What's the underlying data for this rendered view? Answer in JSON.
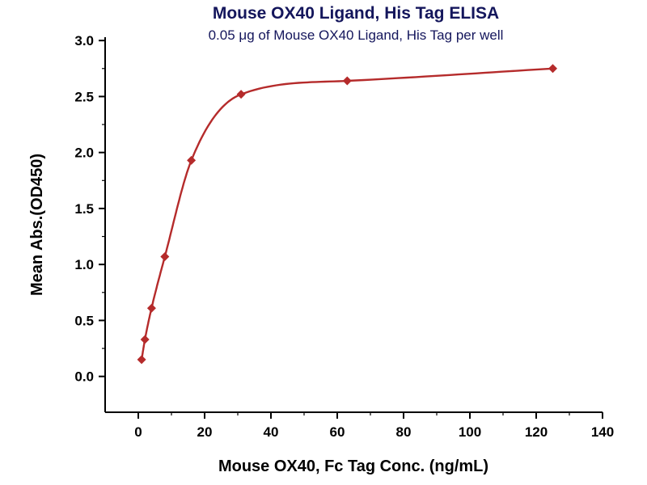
{
  "chart_data": {
    "type": "scatter",
    "title": "Mouse OX40 Ligand, His Tag ELISA",
    "subtitle": "0.05 μg of Mouse OX40 Ligand, His Tag per well",
    "xlabel": "Mouse OX40, Fc Tag Conc. (ng/mL)",
    "ylabel": "Mean Abs.(OD450)",
    "xlim": [
      -10,
      140
    ],
    "ylim": [
      -0.32,
      3.03
    ],
    "xticks": [
      0,
      20,
      40,
      60,
      80,
      100,
      120,
      140
    ],
    "yticks": [
      0,
      0.5,
      1,
      1.5,
      2,
      2.5,
      3
    ],
    "ytick_labels": [
      "0.0",
      "0.5",
      "1.0",
      "1.5",
      "2.0",
      "2.5",
      "3.0"
    ],
    "grid": false,
    "legend": "none",
    "curve": "smooth fit through points",
    "series": [
      {
        "name": "Mouse OX40, Fc Tag",
        "marker": "diamond",
        "color": "#b52b2b",
        "x": [
          1,
          2,
          4,
          8,
          16,
          31,
          63,
          125
        ],
        "y": [
          0.15,
          0.33,
          0.61,
          1.07,
          1.93,
          2.52,
          2.64,
          2.75
        ]
      }
    ],
    "colors": {
      "title": "#14165c",
      "subtitle": "#14165c",
      "axis": "#000000",
      "curve": "#b52b2b",
      "marker": "#b52b2b",
      "background": "#ffffff"
    }
  }
}
